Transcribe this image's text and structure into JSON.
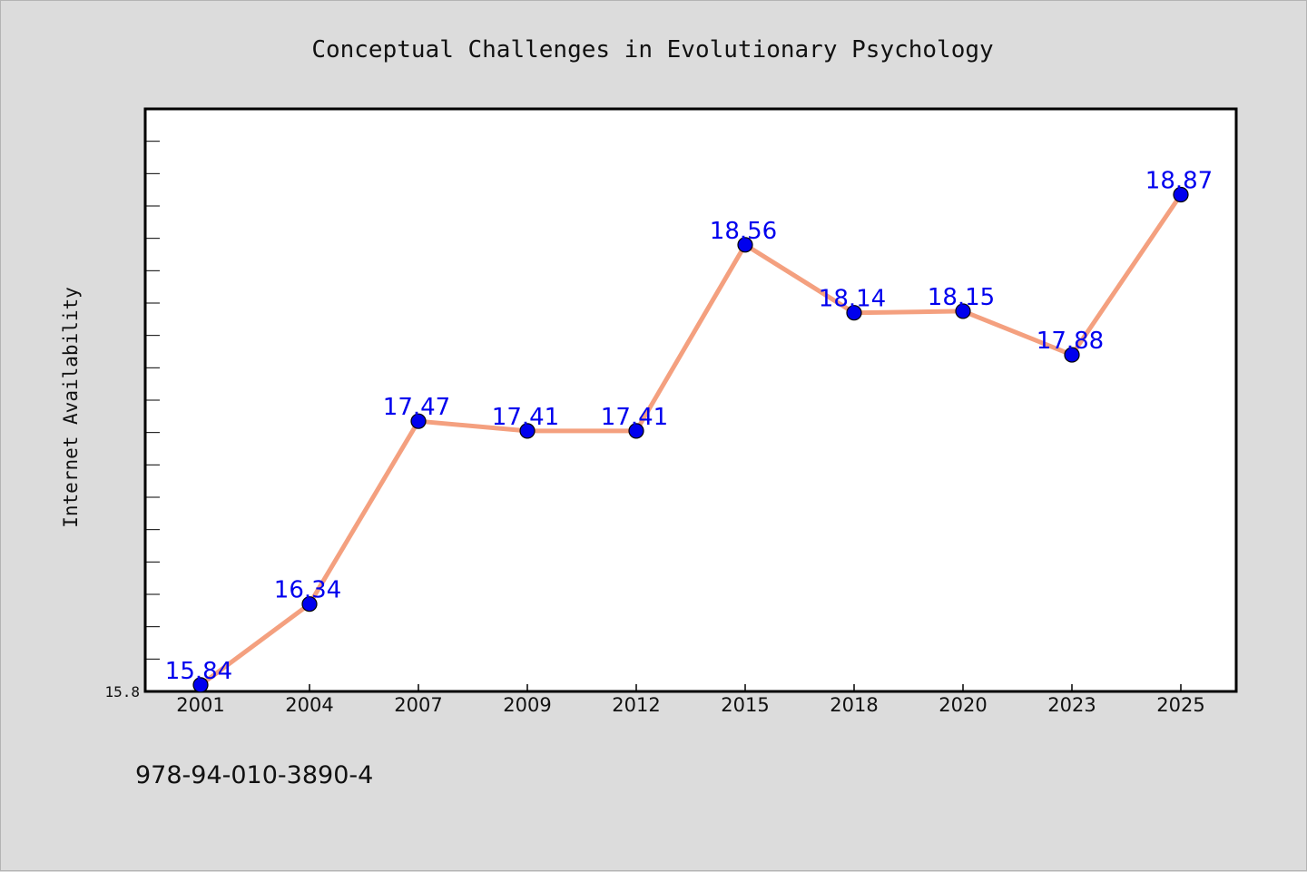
{
  "colors": {
    "background": "#dcdcdc",
    "plot_background": "#ffffff",
    "line": "#f4a07f",
    "marker": "#0000ee",
    "label": "#0000ee"
  },
  "chart_data": {
    "type": "line",
    "title": "Conceptual Challenges in Evolutionary Psychology",
    "xlabel": "",
    "ylabel": "Internet Availability",
    "categories": [
      "2001",
      "2004",
      "2007",
      "2009",
      "2012",
      "2015",
      "2018",
      "2020",
      "2023",
      "2025"
    ],
    "series": [
      {
        "values": [
          15.84,
          16.34,
          17.47,
          17.41,
          17.41,
          18.56,
          18.14,
          18.15,
          17.88,
          18.87
        ]
      }
    ],
    "data_labels": [
      "15.84",
      "16.34",
      "17.47",
      "17.41",
      "17.41",
      "18.56",
      "18.14",
      "18.15",
      "17.88",
      "18.87"
    ],
    "ylim": [
      15.8,
      19.4
    ],
    "y_tick_labels": [
      "15.8"
    ],
    "grid": false,
    "legend": "none"
  },
  "footer": {
    "isbn": "978-94-010-3890-4"
  }
}
